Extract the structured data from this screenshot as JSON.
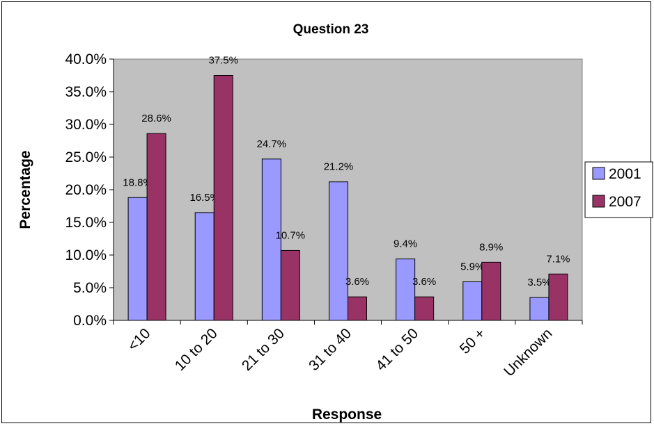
{
  "chart_data": {
    "type": "bar",
    "title": "Question 23",
    "xlabel": "Response",
    "ylabel": "Percentage",
    "categories": [
      "<10",
      "10 to 20",
      "21 to 30",
      "31 to 40",
      "41 to 50",
      "50 +",
      "Unknown"
    ],
    "series": [
      {
        "name": "2001",
        "values": [
          18.8,
          16.5,
          24.7,
          21.2,
          9.4,
          5.9,
          3.5
        ],
        "labels": [
          "18.8%",
          "16.5%",
          "24.7%",
          "21.2%",
          "9.4%",
          "5.9%",
          "3.5%"
        ],
        "color": "#9999ff"
      },
      {
        "name": "2007",
        "values": [
          28.6,
          37.5,
          10.7,
          3.6,
          3.6,
          8.9,
          7.1
        ],
        "labels": [
          "28.6%",
          "37.5%",
          "10.7%",
          "3.6%",
          "3.6%",
          "8.9%",
          "7.1%"
        ],
        "color": "#993366"
      }
    ],
    "ylim": [
      0,
      40
    ],
    "yticks": [
      "0.0%",
      "5.0%",
      "10.0%",
      "15.0%",
      "20.0%",
      "25.0%",
      "30.0%",
      "35.0%",
      "40.0%"
    ],
    "plot_background": "#c0c0c0",
    "grid": false,
    "legend": "right"
  }
}
